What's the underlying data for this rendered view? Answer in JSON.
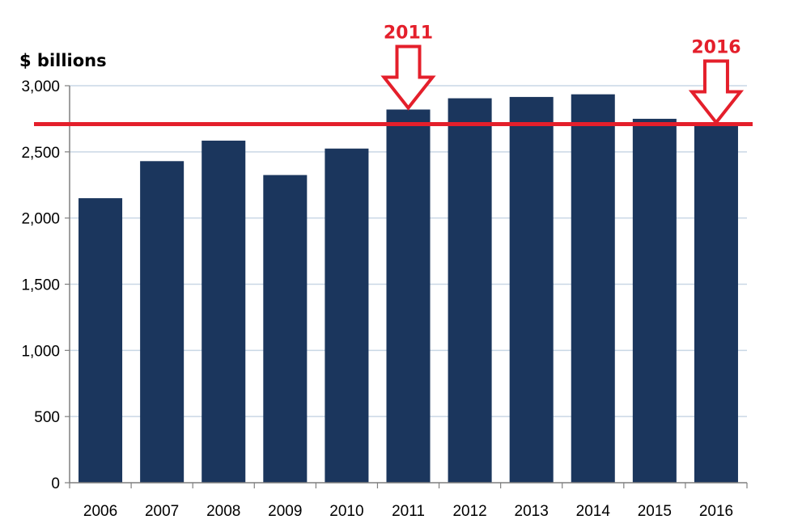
{
  "chart_data": {
    "type": "bar",
    "ylabel": "$ billions",
    "categories": [
      "2006",
      "2007",
      "2008",
      "2009",
      "2010",
      "2011",
      "2012",
      "2013",
      "2014",
      "2015",
      "2016"
    ],
    "values": [
      2150,
      2430,
      2585,
      2325,
      2525,
      2820,
      2905,
      2915,
      2935,
      2750,
      2710
    ],
    "ylim": [
      0,
      3000
    ],
    "yticks": [
      0,
      500,
      1000,
      1500,
      2000,
      2500,
      3000
    ],
    "ytick_labels": [
      "0",
      "500",
      "1,000",
      "1,500",
      "2,000",
      "2,500",
      "3,000"
    ],
    "grid": true,
    "reference_line": {
      "value": 2710
    },
    "annotations": [
      {
        "text": "2011",
        "category": "2011"
      },
      {
        "text": "2016",
        "category": "2016"
      }
    ]
  },
  "colors": {
    "bar": "#1b365d",
    "annotation": "#e41f2b",
    "grid": "#c9d7e5",
    "axis": "#7f7f7f"
  }
}
